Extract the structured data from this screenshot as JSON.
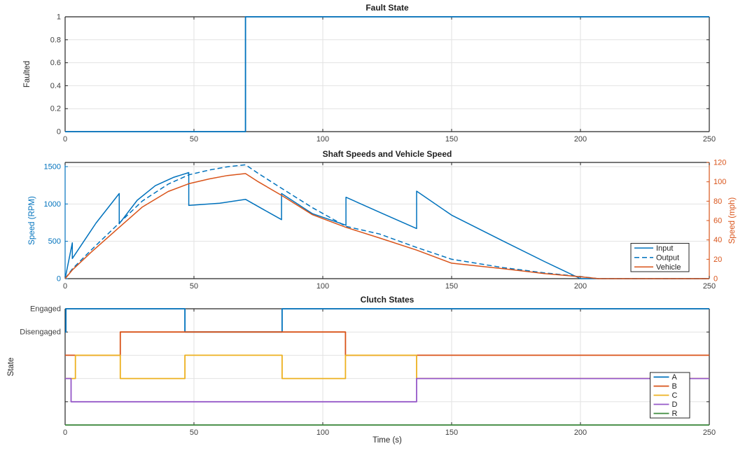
{
  "figure": {
    "background": "#ffffff",
    "axis_color": "#262626",
    "grid_color": "#e2e2e2",
    "text_color": "#404040",
    "accent_blue": "#0072BD",
    "accent_orange": "#D95319"
  },
  "chart_data": [
    {
      "id": "fault",
      "type": "line",
      "title": "Fault State",
      "ylabel": "Faulted",
      "xlim": [
        0,
        250
      ],
      "xticks": [
        0,
        50,
        100,
        150,
        200,
        250
      ],
      "ylim": [
        0,
        1
      ],
      "yticks": [
        0,
        0.2,
        0.4,
        0.6,
        0.8,
        1
      ],
      "grid": true,
      "legend": null,
      "series": [
        {
          "name": "Faulted",
          "color": "#0072BD",
          "dash": null,
          "points": [
            [
              0,
              0
            ],
            [
              70,
              0
            ],
            [
              70,
              1
            ],
            [
              250,
              1
            ]
          ]
        }
      ]
    },
    {
      "id": "speeds",
      "type": "line",
      "title": "Shaft Speeds and Vehicle Speed",
      "ylabel_left": "Speed (RPM)",
      "ylabel_right": "Speed (mph)",
      "axis_left_color": "#0072BD",
      "axis_right_color": "#D95319",
      "xlim": [
        0,
        250
      ],
      "xticks": [
        0,
        50,
        100,
        150,
        200,
        250
      ],
      "ylim_left": [
        0,
        1556
      ],
      "yticks_left": [
        0,
        500,
        1000,
        1500
      ],
      "ylim_right": [
        0,
        120
      ],
      "yticks_right": [
        0,
        20,
        40,
        60,
        80,
        100,
        120
      ],
      "grid": true,
      "legend_labels": [
        "Input",
        "Output",
        "Vehicle"
      ],
      "series": [
        {
          "name": "Input",
          "axis": "left",
          "color": "#0072BD",
          "dash": null,
          "points": [
            [
              0,
              0
            ],
            [
              2.8,
              480
            ],
            [
              2.8,
              270
            ],
            [
              12,
              745
            ],
            [
              21,
              1140
            ],
            [
              21,
              735
            ],
            [
              28,
              1050
            ],
            [
              35,
              1245
            ],
            [
              42,
              1355
            ],
            [
              48,
              1420
            ],
            [
              48,
              980
            ],
            [
              60,
              1010
            ],
            [
              70,
              1062
            ],
            [
              77,
              925
            ],
            [
              84,
              790
            ],
            [
              84,
              1140
            ],
            [
              96,
              870
            ],
            [
              109,
              715
            ],
            [
              109,
              1090
            ],
            [
              123,
              875
            ],
            [
              136.4,
              671
            ],
            [
              136.4,
              1172
            ],
            [
              150,
              850
            ],
            [
              170,
              503
            ],
            [
              186,
              230
            ],
            [
              200,
              0
            ],
            [
              250,
              0
            ]
          ]
        },
        {
          "name": "Output",
          "axis": "left",
          "color": "#0072BD",
          "dash": "7 4",
          "points": [
            [
              0,
              0
            ],
            [
              2.8,
              130
            ],
            [
              10,
              380
            ],
            [
              21,
              745
            ],
            [
              30,
              1040
            ],
            [
              40,
              1265
            ],
            [
              48,
              1390
            ],
            [
              56,
              1455
            ],
            [
              63,
              1498
            ],
            [
              70,
              1525
            ],
            [
              75,
              1408
            ],
            [
              84,
              1210
            ],
            [
              96,
              950
            ],
            [
              109,
              700
            ],
            [
              122,
              598
            ],
            [
              136.4,
              418
            ],
            [
              150,
              260
            ],
            [
              170,
              148
            ],
            [
              186,
              78
            ],
            [
              200,
              28
            ],
            [
              207,
              0
            ],
            [
              250,
              0
            ]
          ]
        },
        {
          "name": "Vehicle",
          "axis": "right",
          "color": "#D95319",
          "dash": null,
          "points": [
            [
              0,
              0
            ],
            [
              2.8,
              9
            ],
            [
              10,
              27
            ],
            [
              21,
              53
            ],
            [
              30,
              74
            ],
            [
              40,
              90
            ],
            [
              48,
              98
            ],
            [
              56,
              103
            ],
            [
              63,
              106.5
            ],
            [
              70,
              108.5
            ],
            [
              75,
              100
            ],
            [
              84,
              86
            ],
            [
              96,
              66
            ],
            [
              109,
              53
            ],
            [
              122,
              42
            ],
            [
              136.4,
              29.5
            ],
            [
              150,
              16
            ],
            [
              170,
              10.3
            ],
            [
              186,
              5.3
            ],
            [
              200,
              2
            ],
            [
              207,
              0
            ],
            [
              250,
              0
            ]
          ]
        }
      ]
    },
    {
      "id": "clutch",
      "type": "step",
      "title": "Clutch States",
      "ylabel": "State",
      "xlabel": "Time (s)",
      "xlim": [
        0,
        250
      ],
      "xticks": [
        0,
        50,
        100,
        150,
        200,
        250
      ],
      "slots": 5,
      "ytick_labels": [
        "Engaged",
        "Disengaged"
      ],
      "grid": true,
      "legend_labels": [
        "A",
        "B",
        "C",
        "D",
        "R"
      ],
      "series": [
        {
          "name": "A",
          "color": "#0072BD",
          "points": [
            [
              0,
              1
            ],
            [
              0.3,
              1
            ],
            [
              0.3,
              0
            ],
            [
              46.5,
              0
            ],
            [
              46.5,
              1
            ],
            [
              84.2,
              1
            ],
            [
              84.2,
              0
            ],
            [
              250,
              0
            ]
          ]
        },
        {
          "name": "B",
          "color": "#D95319",
          "points": [
            [
              0,
              2
            ],
            [
              21.4,
              2
            ],
            [
              21.4,
              1
            ],
            [
              108.8,
              1
            ],
            [
              108.8,
              2
            ],
            [
              250,
              2
            ]
          ]
        },
        {
          "name": "C",
          "color": "#EDB120",
          "points": [
            [
              0,
              3
            ],
            [
              4,
              3
            ],
            [
              4,
              2
            ],
            [
              21.4,
              2
            ],
            [
              21.4,
              3
            ],
            [
              46.5,
              3
            ],
            [
              46.5,
              2
            ],
            [
              84.2,
              2
            ],
            [
              84.2,
              3
            ],
            [
              108.8,
              3
            ],
            [
              108.8,
              2
            ],
            [
              136.4,
              2
            ],
            [
              136.4,
              3
            ],
            [
              250,
              3
            ]
          ]
        },
        {
          "name": "D",
          "color": "#9558C8",
          "points": [
            [
              0,
              3
            ],
            [
              2.3,
              3
            ],
            [
              2.3,
              4
            ],
            [
              136.4,
              4
            ],
            [
              136.4,
              3
            ],
            [
              250,
              3
            ]
          ]
        },
        {
          "name": "R",
          "color": "#3D8B3D",
          "points": [
            [
              0,
              5
            ],
            [
              250,
              5
            ]
          ]
        }
      ]
    }
  ]
}
